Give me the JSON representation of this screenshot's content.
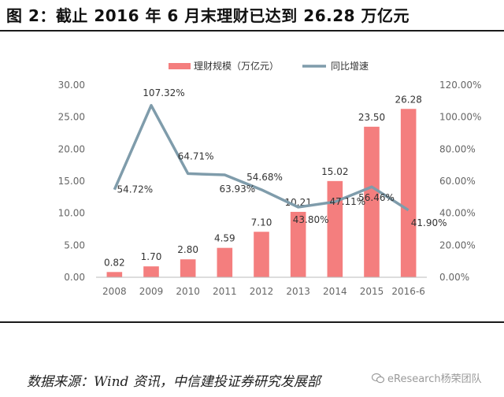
{
  "figure": {
    "title": "图 2：截止 2016 年 6 月末理财已达到 26.28 万亿元",
    "source": "数据来源：Wind 资讯，中信建投证券研究发展部",
    "watermark": "eResearch杨荣团队"
  },
  "colors": {
    "bar": "#f47e7e",
    "line": "#7f9cab",
    "text": "#333333",
    "axis": "#666666"
  },
  "chart_data": {
    "type": "bar",
    "title": "",
    "categories": [
      "2008",
      "2009",
      "2010",
      "2011",
      "2012",
      "2013",
      "2014",
      "2015",
      "2016-6"
    ],
    "series": [
      {
        "name": "理财规模（万亿元）",
        "type": "bar",
        "axis": "left",
        "values": [
          0.82,
          1.7,
          2.8,
          4.59,
          7.1,
          10.21,
          15.02,
          23.5,
          26.28
        ],
        "labels": [
          "0.82",
          "1.70",
          "2.80",
          "4.59",
          "7.10",
          "10.21",
          "15.02",
          "23.50",
          "26.28"
        ]
      },
      {
        "name": "同比增速",
        "type": "line",
        "axis": "right",
        "values": [
          null,
          107.32,
          64.71,
          63.93,
          54.68,
          43.8,
          47.11,
          56.46,
          41.9
        ],
        "start_value": 54.72,
        "labels": [
          "54.72%",
          "107.32%",
          "64.71%",
          "63.93%",
          "54.68%",
          "43.80%",
          "47.11%",
          "56.46%",
          "41.90%"
        ]
      }
    ],
    "yleft": {
      "lim": [
        0,
        30
      ],
      "ticks": [
        "0.00",
        "5.00",
        "10.00",
        "15.00",
        "20.00",
        "25.00",
        "30.00"
      ]
    },
    "yright": {
      "lim": [
        0,
        120
      ],
      "ticks": [
        "0.00%",
        "20.00%",
        "40.00%",
        "60.00%",
        "80.00%",
        "100.00%",
        "120.00%"
      ]
    },
    "legend": "top-right",
    "grid": false
  }
}
